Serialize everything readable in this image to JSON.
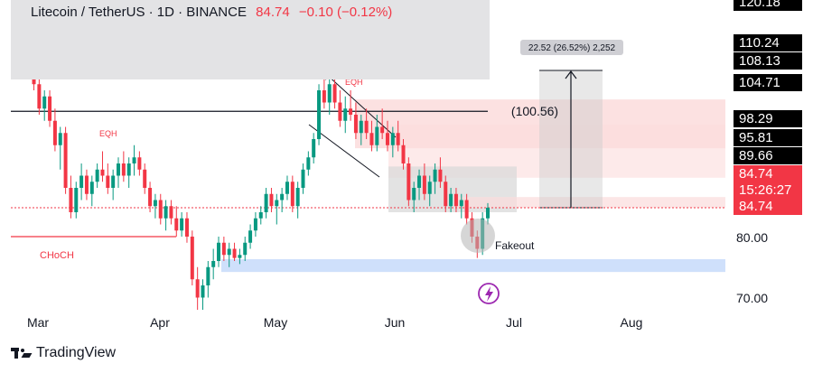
{
  "header": {
    "symbol": "Litecoin / TetherUS · 1D · BINANCE",
    "price": "84.74",
    "change": "−0.10 (−0.12%)"
  },
  "price_axis": {
    "tags": [
      {
        "label": "120.18",
        "color": "#000000"
      },
      {
        "label": "110.24",
        "color": "#000000"
      },
      {
        "label": "108.13",
        "color": "#000000"
      },
      {
        "label": "104.71",
        "color": "#000000"
      },
      {
        "label": "98.29",
        "color": "#000000"
      },
      {
        "label": "95.81",
        "color": "#000000"
      },
      {
        "label": "89.66",
        "color": "#000000"
      },
      {
        "label": "84.74",
        "color": "#f23645"
      },
      {
        "label": "15:26:27",
        "color": "#f23645"
      },
      {
        "label": "84.74",
        "color": "#f23645"
      }
    ],
    "plain_labels": [
      "80.00",
      "70.00"
    ]
  },
  "time_axis": [
    "Mar",
    "Apr",
    "May",
    "Jun",
    "Jul",
    "Aug"
  ],
  "annotations": {
    "eqh_left": "EQH",
    "eqh_right": "EQH",
    "choch": "CHoCH",
    "level": "(100.56)",
    "fakeout": "Fakeout",
    "measure": "22.52 (26.52%) 2,252"
  },
  "brand": "TradingView",
  "colors": {
    "up": "#089981",
    "down": "#f23645",
    "supply_zone": "#fbdcdc",
    "range_box": "#d9d9d9",
    "demand_zone": "#cfe0fb"
  },
  "chart_data": {
    "type": "candlestick",
    "symbol": "LTC/USDT",
    "timeframe": "1D",
    "ylim": [
      66.5,
      121
    ],
    "x_ticks": [
      "Mar",
      "Apr",
      "May",
      "Jun",
      "Jul",
      "Aug"
    ],
    "last_price": 84.74,
    "levels": [
      {
        "label": "(100.56)",
        "value": 100.56
      }
    ],
    "zones": [
      {
        "kind": "supply",
        "from": 94.5,
        "to": 102.5
      },
      {
        "kind": "range",
        "from": 84.0,
        "to": 91.5
      },
      {
        "kind": "demand",
        "from": 74.2,
        "to": 76.3
      }
    ],
    "measurement": {
      "from": 84.74,
      "to": 107.26,
      "text": "22.52 (26.52%) 2,252"
    },
    "candles": [
      [
        118,
        119,
        112,
        113
      ],
      [
        113,
        117,
        111,
        115
      ],
      [
        115,
        116,
        108,
        109
      ],
      [
        109,
        110,
        104,
        105
      ],
      [
        105,
        107,
        100,
        101
      ],
      [
        101,
        104,
        99,
        103
      ],
      [
        103,
        104,
        98,
        99
      ],
      [
        99,
        101,
        94,
        95
      ],
      [
        95,
        98,
        91,
        97
      ],
      [
        97,
        98,
        87,
        88
      ],
      [
        88,
        90,
        83,
        84
      ],
      [
        84,
        89,
        83,
        88
      ],
      [
        88,
        92,
        86,
        90
      ],
      [
        90,
        91,
        86,
        87
      ],
      [
        87,
        90,
        85,
        89
      ],
      [
        89,
        92,
        88,
        91
      ],
      [
        91,
        94,
        89,
        90
      ],
      [
        90,
        92,
        87,
        88
      ],
      [
        88,
        91,
        86,
        90
      ],
      [
        90,
        93,
        88,
        92
      ],
      [
        92,
        94,
        89,
        90
      ],
      [
        90,
        93,
        88,
        92
      ],
      [
        92,
        95,
        90,
        93
      ],
      [
        93,
        94,
        90,
        91
      ],
      [
        91,
        92,
        87,
        88
      ],
      [
        88,
        89,
        84,
        85
      ],
      [
        85,
        87,
        83,
        86
      ],
      [
        86,
        87,
        82,
        83
      ],
      [
        83,
        86,
        81,
        85
      ],
      [
        85,
        86,
        82,
        83
      ],
      [
        83,
        85,
        80,
        81
      ],
      [
        81,
        84,
        80,
        83
      ],
      [
        83,
        84,
        79,
        80
      ],
      [
        80,
        81,
        72,
        73
      ],
      [
        73,
        75,
        68,
        70
      ],
      [
        70,
        73,
        68,
        72
      ],
      [
        72,
        76,
        70,
        75
      ],
      [
        75,
        78,
        73,
        76
      ],
      [
        76,
        80,
        75,
        79
      ],
      [
        79,
        80,
        76,
        77
      ],
      [
        77,
        79,
        75,
        78
      ],
      [
        78,
        79,
        76,
        76.5
      ],
      [
        76.5,
        78,
        75.5,
        77
      ],
      [
        77,
        80,
        76,
        79
      ],
      [
        79,
        82,
        78,
        81
      ],
      [
        81,
        84,
        80,
        83
      ],
      [
        83,
        85,
        82,
        84
      ],
      [
        84,
        88,
        83,
        87
      ],
      [
        87,
        88,
        84,
        85
      ],
      [
        85,
        87,
        82,
        86
      ],
      [
        86,
        88,
        84,
        87
      ],
      [
        87,
        90,
        86,
        89
      ],
      [
        89,
        90,
        84,
        85
      ],
      [
        85,
        89,
        83,
        88
      ],
      [
        88,
        92,
        87,
        91
      ],
      [
        91,
        94,
        90,
        93
      ],
      [
        93,
        97,
        92,
        96
      ],
      [
        96,
        105,
        95,
        104
      ],
      [
        104,
        108,
        101,
        102
      ],
      [
        102,
        106,
        100,
        105
      ],
      [
        105,
        107,
        101,
        102
      ],
      [
        102,
        104,
        98,
        99
      ],
      [
        99,
        103,
        97,
        101
      ],
      [
        101,
        104,
        99,
        100
      ],
      [
        100,
        102,
        96,
        97
      ],
      [
        97,
        100,
        95,
        99
      ],
      [
        99,
        101,
        96,
        97
      ],
      [
        97,
        99,
        94,
        95
      ],
      [
        95,
        100,
        94,
        98
      ],
      [
        98,
        101,
        96,
        97
      ],
      [
        97,
        99,
        94,
        95
      ],
      [
        95,
        98,
        93,
        97
      ],
      [
        97,
        99,
        94,
        95
      ],
      [
        95,
        96,
        91,
        92
      ],
      [
        92,
        93,
        85,
        86
      ],
      [
        86,
        89,
        84,
        88
      ],
      [
        88,
        91,
        86,
        90
      ],
      [
        90,
        92,
        86,
        87
      ],
      [
        87,
        90,
        85,
        89
      ],
      [
        89,
        92,
        87,
        91
      ],
      [
        91,
        93,
        88,
        89
      ],
      [
        89,
        90,
        84,
        85
      ],
      [
        85,
        88,
        84,
        87
      ],
      [
        87,
        88,
        84,
        85
      ],
      [
        85,
        87,
        83,
        86
      ],
      [
        86,
        87,
        82,
        83
      ],
      [
        83,
        84,
        79,
        80
      ],
      [
        80,
        81,
        76.5,
        78
      ],
      [
        78,
        84,
        77,
        83
      ],
      [
        83,
        85.5,
        82,
        84.74
      ]
    ]
  }
}
